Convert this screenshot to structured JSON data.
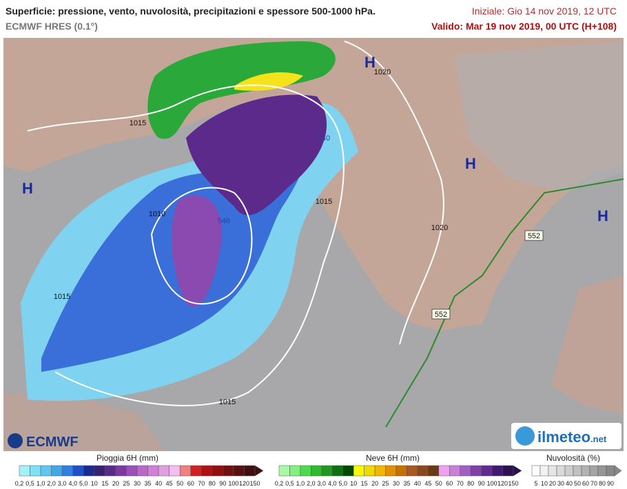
{
  "header": {
    "title": "Superficie: pressione, vento, nuvolosità, precipitazioni e spessore 500-1000 hPa.",
    "model": "ECMWF HRES (0.1°)",
    "init": "Iniziale: Gio 14 nov 2019, 12 UTC",
    "valid": "Valido: Mar 19 nov 2019, 00 UTC (H+108)"
  },
  "map": {
    "highs": [
      "H",
      "H",
      "H",
      "H"
    ],
    "isobars": [
      "1015",
      "1020",
      "1015",
      "1020",
      "1010",
      "1015",
      "1015"
    ],
    "thickness": [
      "546",
      "540",
      "552",
      "552"
    ]
  },
  "logos": {
    "left": "ECMWF",
    "right": "ilmeteo",
    "right_suffix": ".net"
  },
  "legend": {
    "rain": {
      "title": "Pioggia 6H (mm)",
      "ticks": [
        "0,2",
        "0,5",
        "1,0",
        "2,0",
        "3,0",
        "4,0",
        "5,0",
        "10",
        "15",
        "20",
        "25",
        "30",
        "35",
        "40",
        "45",
        "50",
        "60",
        "70",
        "80",
        "90",
        "100",
        "120",
        "150"
      ]
    },
    "snow": {
      "title": "Neve 6H (mm)",
      "ticks": [
        "0,2",
        "0,5",
        "1,0",
        "2,0",
        "3,0",
        "4,0",
        "5,0",
        "10",
        "15",
        "20",
        "25",
        "30",
        "35",
        "40",
        "45",
        "50",
        "60",
        "70",
        "80",
        "90",
        "100",
        "120",
        "150"
      ]
    },
    "cloud": {
      "title": "Nuvolosità (%)",
      "ticks": [
        "5",
        "10",
        "20",
        "30",
        "40",
        "50",
        "60",
        "70",
        "80",
        "90"
      ]
    }
  }
}
